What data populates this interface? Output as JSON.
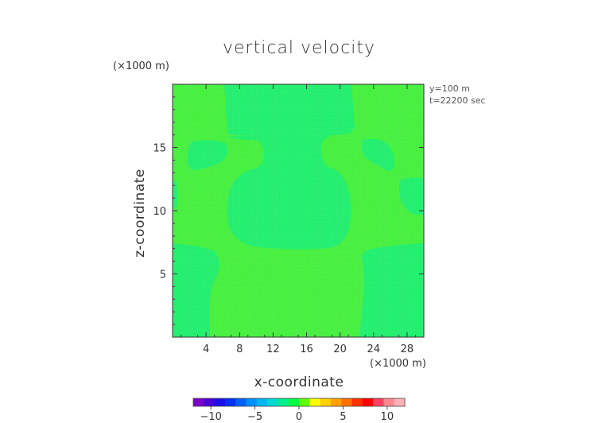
{
  "chart_data": {
    "type": "heatmap",
    "title": "vertical velocity",
    "xlabel": "x-coordinate",
    "ylabel": "z-coordinate",
    "x_unit_note": "(×1000 m)",
    "y_unit_note": "(×1000 m)",
    "annotations": [
      "y=100 m",
      "t=22200 sec"
    ],
    "xlim": [
      0,
      30
    ],
    "ylim": [
      0,
      20
    ],
    "x_ticks": [
      4,
      8,
      12,
      16,
      20,
      24,
      28
    ],
    "y_ticks": [
      5,
      10,
      15
    ],
    "grid": true,
    "colorbar": {
      "range": [
        -12,
        12
      ],
      "ticks": [
        -10,
        -5,
        0,
        5,
        10
      ],
      "colors": [
        "#7a00c8",
        "#4a00d8",
        "#1a0ee8",
        "#0030f0",
        "#0060f8",
        "#0090ff",
        "#00b8f0",
        "#00d8d0",
        "#00ee90",
        "#00ff40",
        "#60ff00",
        "#ffff00",
        "#ffd000",
        "#ffa000",
        "#ff7000",
        "#ff3000",
        "#ff0000",
        "#ff4060",
        "#ff8890",
        "#ffb0b8"
      ]
    },
    "fields": {
      "background_value": 0.3,
      "background_color": "#44ef3c",
      "region_value": -0.3,
      "region_color": "#1fee6c",
      "regions": [
        "central cell (x≈6.5–21.5, z≈7–16)",
        "left lower column (x≈0–6, z≈0–7)",
        "right lower column (x≈22–30, z≈0–7)",
        "left upper column (x≈6–10, z≈16–20)",
        "right upper column (x≈10–21, z≈16–20)",
        "left eddy (x≈1.5–6, z≈13–16)",
        "right eddy (x≈22.5–26, z≈13–16)",
        "right edge eddy (x≈27–30, z≈9.5–12.5)",
        "left edge strip (x≈0–0.5, z≈10–12)"
      ]
    }
  }
}
